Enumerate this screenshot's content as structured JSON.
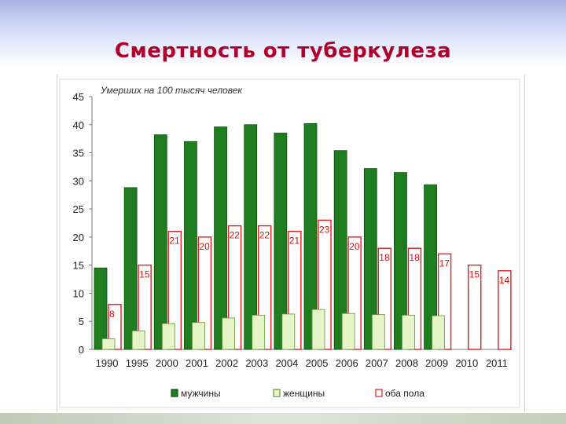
{
  "slide": {
    "title": "Смертность от туберкулеза"
  },
  "chart_data": {
    "type": "bar",
    "subtitle": "Умерших на 100 тысяч человек",
    "categories": [
      "1990",
      "1995",
      "2000",
      "2001",
      "2002",
      "2003",
      "2004",
      "2005",
      "2006",
      "2007",
      "2008",
      "2009",
      "2010",
      "2011"
    ],
    "series": [
      {
        "name": "мужчины",
        "values": [
          14.5,
          28.8,
          38.2,
          37.0,
          39.6,
          40.0,
          38.5,
          40.2,
          35.4,
          32.2,
          31.5,
          29.3,
          null,
          null
        ],
        "color": "#1e7d1e"
      },
      {
        "name": "женщины",
        "values": [
          1.9,
          3.3,
          4.6,
          4.8,
          5.6,
          6.1,
          6.3,
          7.1,
          6.4,
          6.2,
          6.1,
          6.0,
          null,
          null
        ],
        "color": "#e6f5c8"
      },
      {
        "name": "оба пола",
        "values": [
          8,
          15,
          21,
          20,
          22,
          22,
          21,
          23,
          20,
          18,
          18,
          17,
          15,
          14
        ],
        "labels": [
          "8",
          "15",
          "21",
          "20",
          "22",
          "22",
          "21",
          "23",
          "20",
          "18",
          "18",
          "17",
          "15",
          "14"
        ],
        "color": "#e02020"
      }
    ],
    "yticks": [
      "0",
      "5",
      "10",
      "15",
      "20",
      "25",
      "30",
      "35",
      "40",
      "45"
    ],
    "ylim": [
      0,
      45
    ],
    "grid": false,
    "legend_position": "bottom"
  }
}
